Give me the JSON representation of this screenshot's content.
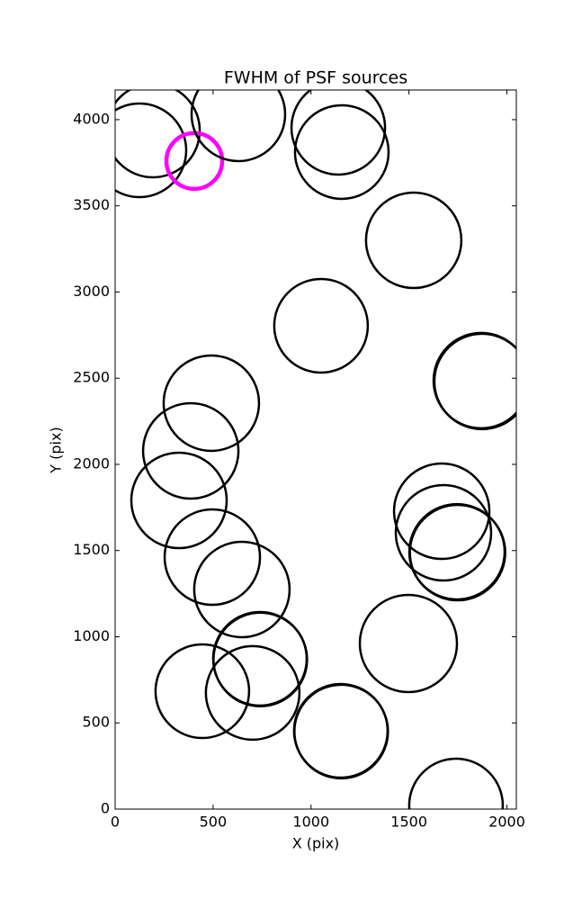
{
  "chart_data": {
    "type": "scatter",
    "title": "FWHM of PSF sources",
    "x_label": "X (pix)",
    "y_label": "Y (pix)",
    "x": [
      124,
      193,
      404,
      629,
      1139,
      1157,
      1524,
      1051,
      1869,
      1873,
      491,
      386,
      326,
      1667,
      1676,
      1745,
      1748,
      496,
      647,
      739,
      741,
      1497,
      445,
      702,
      1152,
      1154,
      1740
    ],
    "y": [
      3822,
      3937,
      3760,
      4031,
      3953,
      3812,
      3300,
      2804,
      2486,
      2481,
      2355,
      2078,
      1791,
      1728,
      1603,
      1493,
      1488,
      1462,
      1274,
      872,
      868,
      961,
      684,
      674,
      454,
      450,
      21
    ],
    "sizes": [
      52,
      52,
      31,
      52,
      52,
      52,
      53,
      52,
      53,
      53,
      53,
      53,
      53,
      53,
      53,
      53,
      53,
      53,
      53,
      52,
      52,
      54,
      52,
      52,
      52,
      52,
      52
    ],
    "colors": [
      "#000000",
      "#000000",
      "#ff00ff",
      "#000000",
      "#000000",
      "#000000",
      "#000000",
      "#000000",
      "#000000",
      "#000000",
      "#000000",
      "#000000",
      "#000000",
      "#000000",
      "#000000",
      "#000000",
      "#000000",
      "#000000",
      "#000000",
      "#000000",
      "#000000",
      "#000000",
      "#000000",
      "#000000",
      "#000000",
      "#000000",
      "#000000"
    ],
    "xlim": [
      0,
      2048
    ],
    "ylim": [
      0,
      4172
    ],
    "xticks": [
      0,
      500,
      1000,
      1500,
      2000
    ],
    "yticks": [
      0,
      500,
      1000,
      1500,
      2000,
      2500,
      3000,
      3500,
      4000
    ]
  }
}
